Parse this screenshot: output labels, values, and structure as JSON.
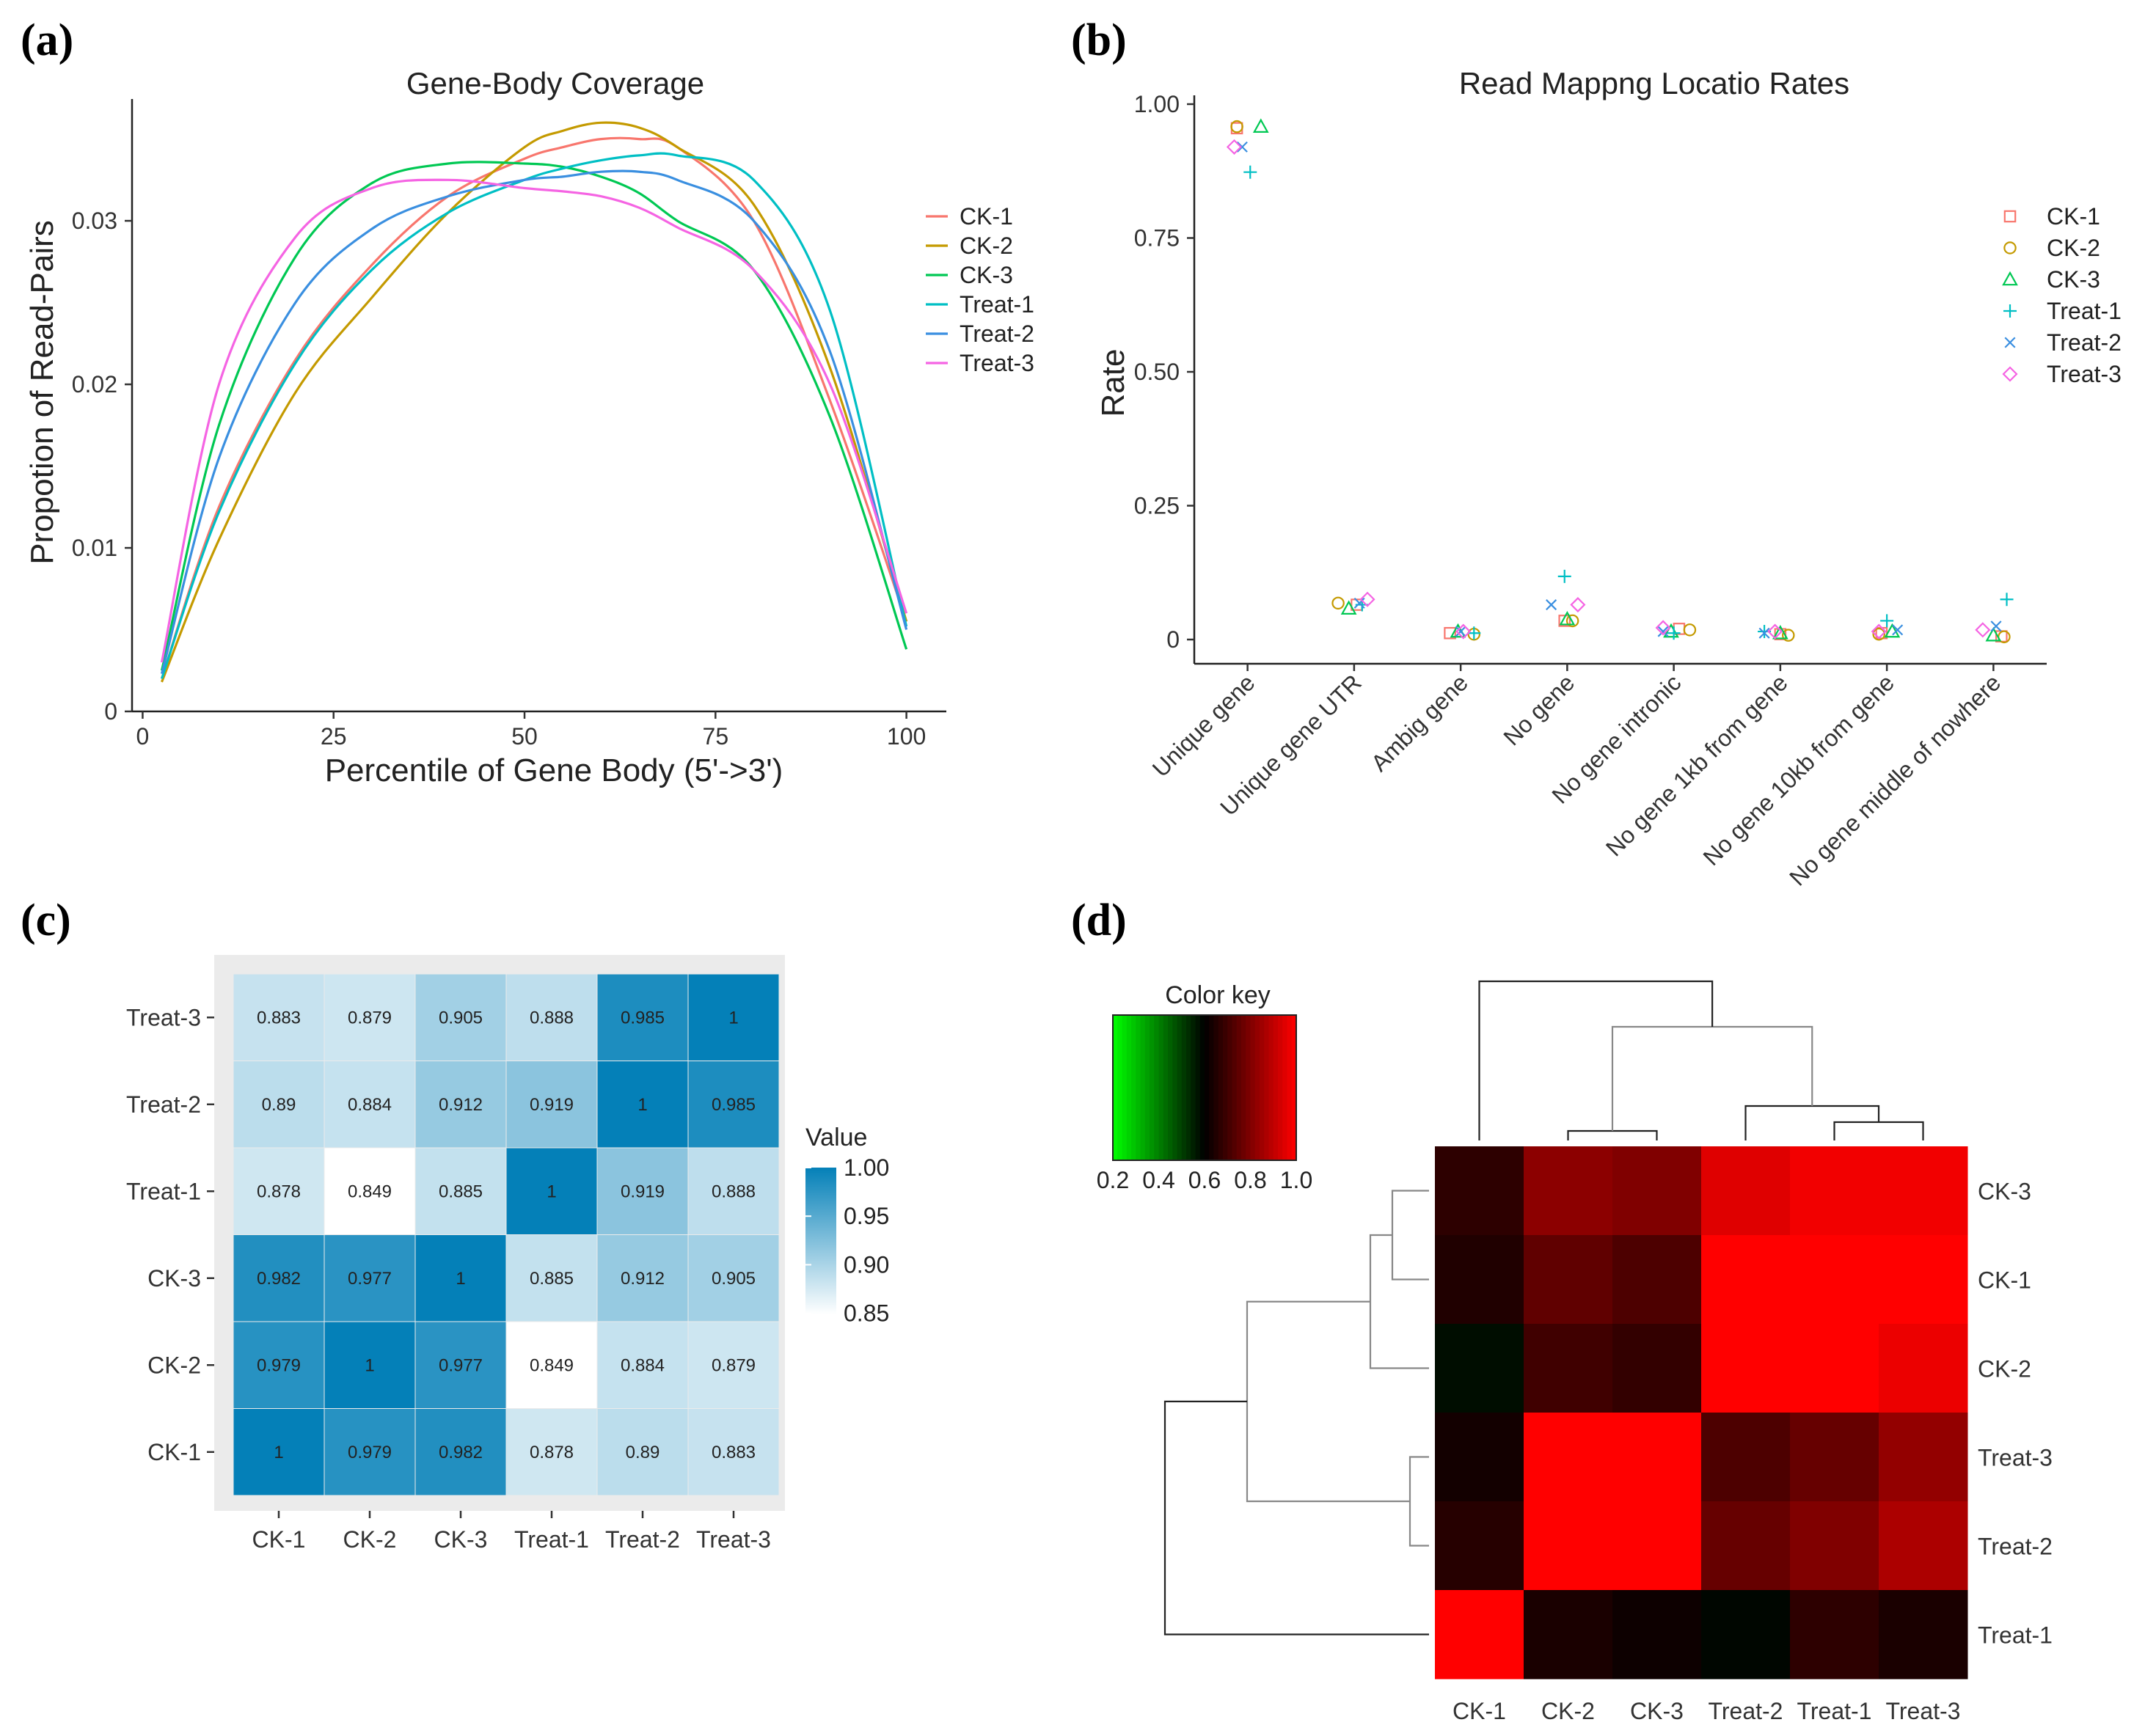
{
  "panels": {
    "a": "(a)",
    "b": "(b)",
    "c": "(c)",
    "d": "(d)"
  },
  "chart_data": [
    {
      "id": "gene-body-coverage",
      "type": "line",
      "title": "Gene-Body Coverage",
      "xlabel": "Percentile of Gene Body (5'->3')",
      "ylabel": "Propotion of Read-Pairs",
      "xlim": [
        0,
        100
      ],
      "ylim": [
        0,
        0.037
      ],
      "xticks": [
        0,
        25,
        50,
        75,
        100
      ],
      "yticks": [
        0,
        0.01,
        0.02,
        0.03
      ],
      "ytick_labels": [
        "0",
        "0.01",
        "0.02",
        "0.03"
      ],
      "x": [
        2.5,
        10,
        20,
        30,
        40,
        50,
        55,
        60,
        65,
        70,
        80,
        90,
        100
      ],
      "series": [
        {
          "name": "CK-1",
          "color": "#f8766d",
          "values": [
            0.002,
            0.0125,
            0.0215,
            0.0273,
            0.0315,
            0.0338,
            0.0345,
            0.035,
            0.035,
            0.0345,
            0.03,
            0.019,
            0.0055
          ]
        },
        {
          "name": "CK-2",
          "color": "#c49a00",
          "values": [
            0.0018,
            0.0105,
            0.0195,
            0.0253,
            0.0305,
            0.0345,
            0.0355,
            0.036,
            0.0357,
            0.0345,
            0.031,
            0.021,
            0.0055
          ]
        },
        {
          "name": "CK-3",
          "color": "#00c853",
          "values": [
            0.0025,
            0.0175,
            0.0278,
            0.0323,
            0.0335,
            0.0335,
            0.0333,
            0.0327,
            0.0317,
            0.03,
            0.027,
            0.018,
            0.0038
          ]
        },
        {
          "name": "Treat-1",
          "color": "#00bfc4",
          "values": [
            0.002,
            0.0122,
            0.0213,
            0.027,
            0.0305,
            0.0325,
            0.0332,
            0.0337,
            0.034,
            0.034,
            0.0325,
            0.0245,
            0.0052
          ]
        },
        {
          "name": "Treat-2",
          "color": "#3a8fe0",
          "values": [
            0.0023,
            0.0155,
            0.025,
            0.0295,
            0.0315,
            0.0325,
            0.0327,
            0.033,
            0.033,
            0.0325,
            0.03,
            0.022,
            0.005
          ]
        },
        {
          "name": "Treat-3",
          "color": "#f564e3",
          "values": [
            0.003,
            0.02,
            0.029,
            0.032,
            0.0325,
            0.032,
            0.0318,
            0.0315,
            0.0308,
            0.0296,
            0.027,
            0.02,
            0.006
          ]
        }
      ],
      "legend": "right"
    },
    {
      "id": "read-mapping-rates",
      "type": "scatter",
      "title": "Read Mappng Locatio Rates",
      "xlabel": "",
      "ylabel": "Rate",
      "ylim": [
        0,
        1
      ],
      "yticks": [
        0,
        0.25,
        0.5,
        0.75,
        1.0
      ],
      "ytick_labels": [
        "0",
        "0.25",
        "0.50",
        "0.75",
        "1.00"
      ],
      "categories": [
        "Unique gene",
        "Unique gene UTR",
        "Ambig gene",
        "No gene",
        "No gene intronic",
        "No gene 1kb from gene",
        "No gene 10kb from gene",
        "No gene middle of nowhere"
      ],
      "series": [
        {
          "name": "CK-1",
          "marker": "square",
          "color": "#f8766d",
          "values": [
            0.955,
            0.065,
            0.012,
            0.035,
            0.02,
            0.01,
            0.012,
            0.006
          ],
          "jitter": [
            -0.2,
            0.05,
            -0.2,
            -0.05,
            0.1,
            0.0,
            -0.1,
            0.15
          ]
        },
        {
          "name": "CK-2",
          "marker": "circle",
          "color": "#c49a00",
          "values": [
            0.958,
            0.068,
            0.01,
            0.035,
            0.018,
            0.008,
            0.01,
            0.005
          ],
          "jitter": [
            -0.2,
            -0.3,
            0.25,
            0.1,
            0.3,
            0.15,
            -0.15,
            0.2
          ]
        },
        {
          "name": "CK-3",
          "marker": "triangle",
          "color": "#00c853",
          "values": [
            0.958,
            0.058,
            0.015,
            0.038,
            0.015,
            0.012,
            0.015,
            0.008
          ],
          "jitter": [
            0.25,
            -0.1,
            -0.05,
            0.0,
            -0.05,
            0.0,
            0.1,
            0.0
          ]
        },
        {
          "name": "Treat-1",
          "marker": "plus",
          "color": "#00bfc4",
          "values": [
            0.873,
            0.065,
            0.012,
            0.118,
            0.012,
            0.015,
            0.035,
            0.075
          ],
          "jitter": [
            0.05,
            0.15,
            0.25,
            -0.05,
            0.0,
            -0.3,
            0.0,
            0.25
          ]
        },
        {
          "name": "Treat-2",
          "marker": "cross",
          "color": "#3a8fe0",
          "values": [
            0.92,
            0.068,
            0.015,
            0.065,
            0.015,
            0.012,
            0.018,
            0.025
          ],
          "jitter": [
            -0.1,
            0.1,
            0.0,
            -0.3,
            -0.2,
            -0.3,
            0.2,
            0.05
          ]
        },
        {
          "name": "Treat-3",
          "marker": "diamond",
          "color": "#f564e3",
          "values": [
            0.92,
            0.075,
            0.015,
            0.065,
            0.022,
            0.015,
            0.015,
            0.018
          ],
          "jitter": [
            -0.25,
            0.25,
            0.05,
            0.2,
            -0.2,
            -0.1,
            -0.15,
            -0.2
          ]
        }
      ],
      "legend": "right"
    },
    {
      "id": "correlation-heatmap",
      "type": "heatmap",
      "title": "",
      "legend_title": "Value",
      "legend_ticks": [
        "1.00",
        "0.95",
        "0.90",
        "0.85"
      ],
      "value_range": [
        0.849,
        1
      ],
      "columns": [
        "CK-1",
        "CK-2",
        "CK-3",
        "Treat-1",
        "Treat-2",
        "Treat-3"
      ],
      "rows": [
        "Treat-3",
        "Treat-2",
        "Treat-1",
        "CK-3",
        "CK-2",
        "CK-1"
      ],
      "values": [
        [
          0.883,
          0.879,
          0.905,
          0.888,
          0.985,
          1
        ],
        [
          0.89,
          0.884,
          0.912,
          0.919,
          1,
          0.985
        ],
        [
          0.878,
          0.849,
          0.885,
          1,
          0.919,
          0.888
        ],
        [
          0.982,
          0.977,
          1,
          0.885,
          0.912,
          0.905
        ],
        [
          0.979,
          1,
          0.977,
          0.849,
          0.884,
          0.879
        ],
        [
          1,
          0.979,
          0.982,
          0.878,
          0.89,
          0.883
        ]
      ],
      "labels": [
        [
          "0.883",
          "0.879",
          "0.905",
          "0.888",
          "0.985",
          "1"
        ],
        [
          "0.89",
          "0.884",
          "0.912",
          "0.919",
          "1",
          "0.985"
        ],
        [
          "0.878",
          "0.849",
          "0.885",
          "1",
          "0.919",
          "0.888"
        ],
        [
          "0.982",
          "0.977",
          "1",
          "0.885",
          "0.912",
          "0.905"
        ],
        [
          "0.979",
          "1",
          "0.977",
          "0.849",
          "0.884",
          "0.879"
        ],
        [
          "1",
          "0.979",
          "0.982",
          "0.878",
          "0.89",
          "0.883"
        ]
      ]
    },
    {
      "id": "clustered-heatmap",
      "type": "heatmap",
      "title": "Color key",
      "key_ticks": [
        "0.2",
        "0.4",
        "0.6",
        "0.8",
        "1.0"
      ],
      "key_range": [
        0.2,
        1.0
      ],
      "columns": [
        "CK-1",
        "CK-2",
        "CK-3",
        "Treat-2",
        "Treat-1",
        "Treat-3"
      ],
      "rows": [
        "CK-3",
        "CK-1",
        "CK-2",
        "Treat-3",
        "Treat-2",
        "Treat-1"
      ],
      "values": [
        [
          0.67,
          0.82,
          0.8,
          0.95,
          0.98,
          0.98
        ],
        [
          0.65,
          0.75,
          0.72,
          1.0,
          1.0,
          1.0
        ],
        [
          0.58,
          0.7,
          0.68,
          1.0,
          1.0,
          0.97
        ],
        [
          0.63,
          1.0,
          1.0,
          0.72,
          0.76,
          0.83
        ],
        [
          0.66,
          1.0,
          1.0,
          0.76,
          0.8,
          0.87
        ],
        [
          1.0,
          0.64,
          0.62,
          0.59,
          0.67,
          0.64
        ]
      ]
    }
  ]
}
